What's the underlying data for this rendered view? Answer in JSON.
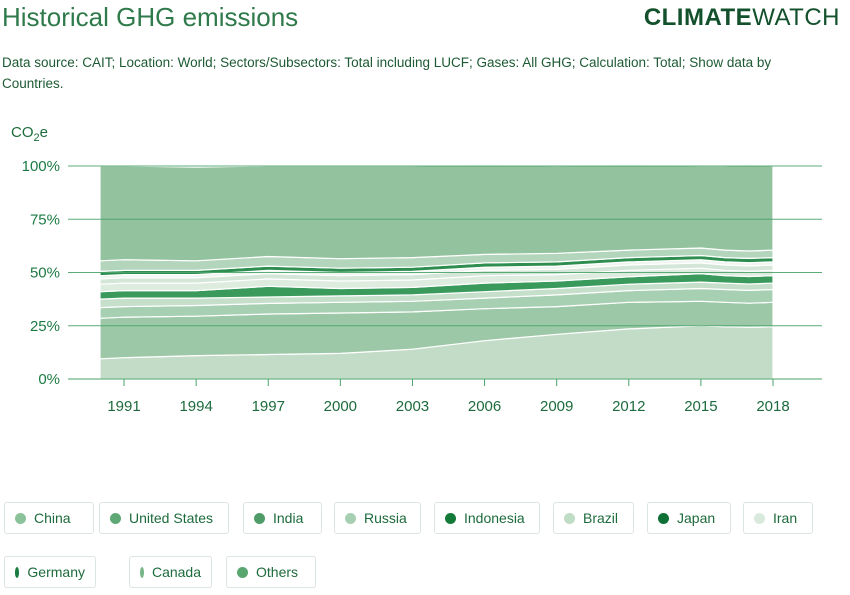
{
  "header": {
    "title": "Historical GHG emissions",
    "brand_bold": "CLIMATE",
    "brand_light": "WATCH",
    "description": "Data source: CAIT; Location: World; Sectors/Subsectors: Total including LUCF; Gases: All GHG; Calculation: Total; Show data by Countries."
  },
  "chart_data": {
    "type": "area",
    "stacked": true,
    "percent": true,
    "ylabel": "CO2e",
    "ylabel_main": "CO",
    "ylabel_sub": "2",
    "ylabel_tail": "e",
    "ylim": [
      0,
      100
    ],
    "y_ticks": [
      "0%",
      "25%",
      "50%",
      "75%",
      "100%"
    ],
    "x_ticks": [
      "1991",
      "1994",
      "1997",
      "2000",
      "2003",
      "2006",
      "2009",
      "2012",
      "2015",
      "2018"
    ],
    "x": [
      1990,
      1991,
      1994,
      1997,
      2000,
      2003,
      2006,
      2009,
      2012,
      2015,
      2016,
      2017,
      2018
    ],
    "grid": true,
    "series": [
      {
        "name": "China",
        "color": "#c3dcc8",
        "values": [
          9.5,
          10,
          11,
          11.5,
          12,
          14,
          18,
          21,
          23.5,
          25,
          24.5,
          24.3,
          24.5
        ]
      },
      {
        "name": "United States",
        "color": "#9dc8a8",
        "values": [
          19,
          19,
          18.5,
          19,
          19,
          17.5,
          15,
          13,
          12.5,
          11.5,
          11.5,
          11.3,
          11.5
        ]
      },
      {
        "name": "India",
        "color": "#a7cfb1",
        "values": [
          5,
          5,
          5,
          5,
          5,
          5,
          5,
          5.5,
          5.5,
          6,
          6,
          6,
          6
        ]
      },
      {
        "name": "Russia",
        "color": "#c5dfcb",
        "values": [
          4,
          4,
          3.5,
          3,
          3,
          3,
          3,
          3,
          3,
          3,
          3,
          3,
          3
        ]
      },
      {
        "name": "Indonesia",
        "color": "#3a9a5c",
        "values": [
          3.5,
          3.5,
          3.5,
          5,
          3.5,
          3.5,
          4,
          3.5,
          3.5,
          4,
          3.5,
          3.5,
          3.5
        ]
      },
      {
        "name": "Brazil",
        "color": "#ddecdf",
        "values": [
          3.5,
          3.5,
          3.5,
          3.5,
          3.5,
          3.5,
          3.5,
          3,
          3,
          2.5,
          2.5,
          2.5,
          2.5
        ]
      },
      {
        "name": "Japan",
        "color": "#d3e6d7",
        "values": [
          2.5,
          2.5,
          2.5,
          2.5,
          2.5,
          2.5,
          2.5,
          2.5,
          2.5,
          2.5,
          2.5,
          2.5,
          2.5
        ]
      },
      {
        "name": "Iran",
        "color": "#eef6ef",
        "values": [
          1.5,
          1.5,
          1.5,
          1.5,
          1.5,
          1.5,
          1.5,
          1.5,
          1.5,
          1.5,
          1.5,
          1.5,
          1.5
        ]
      },
      {
        "name": "Germany",
        "color": "#2e8e4f",
        "values": [
          2,
          2,
          2,
          2,
          2,
          2,
          2,
          2,
          2,
          2,
          2,
          2,
          2
        ]
      },
      {
        "name": "Canada",
        "color": "#b3d5bb",
        "values": [
          5,
          5,
          4.5,
          4.5,
          4.5,
          4.5,
          4,
          4,
          3.5,
          3.5,
          3.5,
          3.5,
          3.5
        ]
      },
      {
        "name": "Others",
        "color": "#93c29f",
        "values": [
          44.5,
          44,
          44,
          42.5,
          43.5,
          43,
          42,
          41,
          40,
          38.5,
          39.5,
          40.4,
          39.5
        ]
      }
    ]
  },
  "legend": [
    {
      "label": "China",
      "color": "#8cc29a"
    },
    {
      "label": "United States",
      "color": "#5ea876"
    },
    {
      "label": "India",
      "color": "#4f9c69"
    },
    {
      "label": "Russia",
      "color": "#a7cfb1"
    },
    {
      "label": "Indonesia",
      "color": "#147a3a"
    },
    {
      "label": "Brazil",
      "color": "#bfdcc5"
    },
    {
      "label": "Japan",
      "color": "#0f7035"
    },
    {
      "label": "Iran",
      "color": "#d9eadd"
    },
    {
      "label": "Germany",
      "color": "#1a7c40"
    },
    {
      "label": "Canada",
      "color": "#78b689"
    },
    {
      "label": "Others",
      "color": "#5aa671"
    }
  ]
}
